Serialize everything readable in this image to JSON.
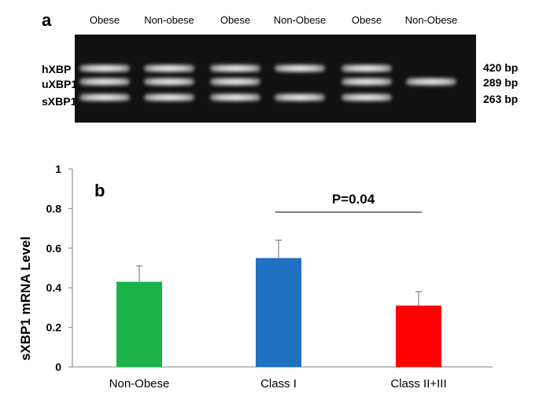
{
  "gel": {
    "panel_label": "a",
    "lanes": [
      {
        "label": "Obese",
        "bands": [
          "hXBP",
          "uXBP1",
          "sXBP1"
        ]
      },
      {
        "label": "Non-obese",
        "bands": [
          "hXBP",
          "uXBP1",
          "sXBP1"
        ]
      },
      {
        "label": "Obese",
        "bands": [
          "hXBP",
          "uXBP1",
          "sXBP1"
        ]
      },
      {
        "label": "Non-Obese",
        "bands": [
          "hXBP",
          "sXBP1"
        ]
      },
      {
        "label": "Obese",
        "bands": [
          "hXBP",
          "uXBP1",
          "sXBP1"
        ]
      },
      {
        "label": "Non-Obese",
        "bands": [
          "uXBP1"
        ]
      }
    ],
    "band_names": [
      "hXBP",
      "uXBP1",
      "sXBP1"
    ],
    "band_sizes": [
      "420 bp",
      "289 bp",
      "263 bp"
    ]
  },
  "chart_data": {
    "type": "bar",
    "panel_label": "b",
    "categories": [
      "Non-Obese",
      "Class I",
      "Class II+III"
    ],
    "values": [
      0.43,
      0.55,
      0.31
    ],
    "errors": [
      0.08,
      0.09,
      0.07
    ],
    "colors": [
      "#1bb24b",
      "#1f70c1",
      "#ff0000"
    ],
    "xlabel": "",
    "ylabel": "sXBP1 mRNA Level",
    "ylim": [
      0,
      1
    ],
    "yticks": [
      "0",
      "0.2",
      "0.4",
      "0.6",
      "0.8",
      "1"
    ],
    "annotation": {
      "text": "P=0.04",
      "from": "Class I",
      "to": "Class II+III"
    },
    "grid": false
  }
}
